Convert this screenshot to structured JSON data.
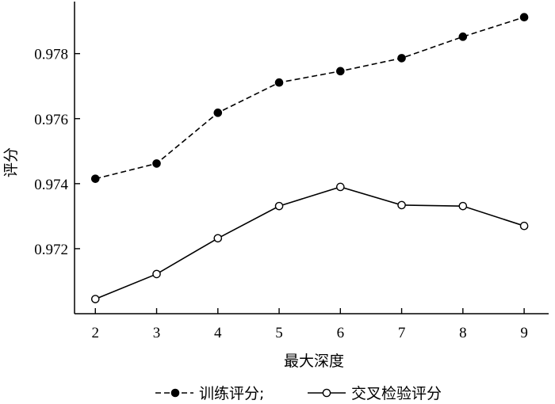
{
  "chart_data": {
    "type": "line",
    "title": "",
    "xlabel": "最大深度",
    "ylabel": "评分",
    "x": [
      2,
      3,
      4,
      5,
      6,
      7,
      8,
      9
    ],
    "xlim": [
      1.66,
      9.4
    ],
    "ylim": [
      0.97,
      0.9796
    ],
    "x_ticks": [
      "2",
      "3",
      "4",
      "5",
      "6",
      "7",
      "8",
      "9"
    ],
    "y_ticks": [
      "0.972",
      "0.974",
      "0.976",
      "0.978"
    ],
    "y_tick_values": [
      0.972,
      0.974,
      0.976,
      0.978
    ],
    "grid": false,
    "legend_position": "bottom",
    "series": [
      {
        "name": "训练评分;",
        "values": [
          0.97415,
          0.97462,
          0.97618,
          0.97711,
          0.97746,
          0.97786,
          0.97852,
          0.97912
        ],
        "line_style": "dashed",
        "marker": "filled-circle",
        "color": "#000000"
      },
      {
        "name": "交叉检验评分",
        "values": [
          0.97045,
          0.97122,
          0.97232,
          0.97331,
          0.9739,
          0.97334,
          0.97331,
          0.9727
        ],
        "line_style": "solid",
        "marker": "open-circle",
        "color": "#000000"
      }
    ]
  }
}
